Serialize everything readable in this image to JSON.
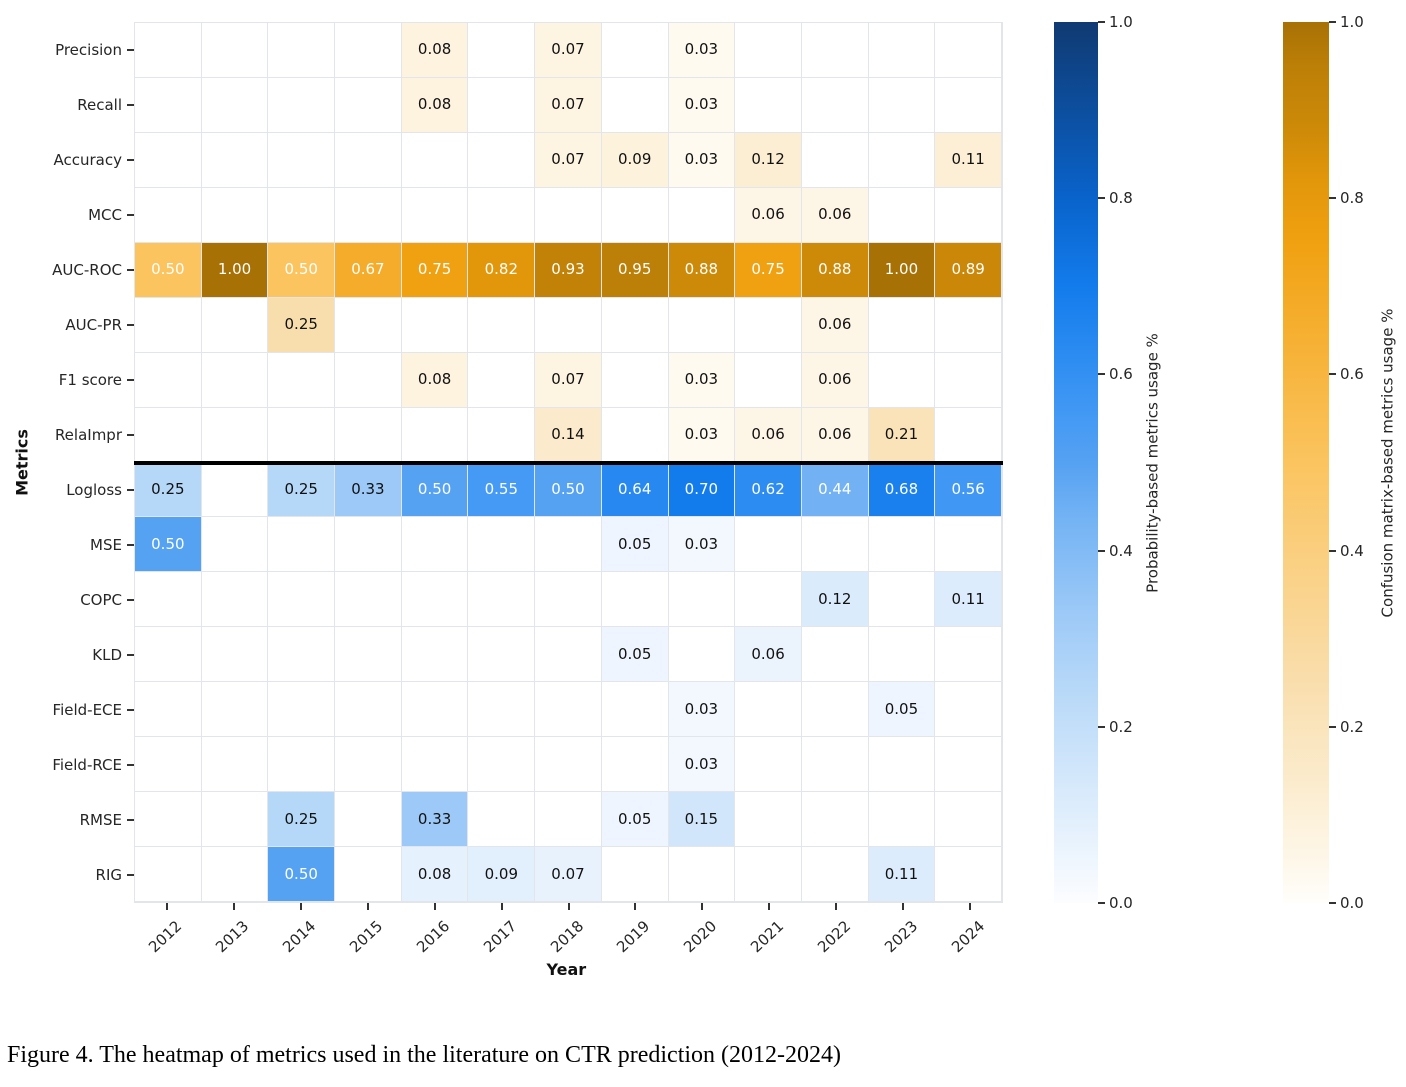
{
  "caption": "Figure 4. The heatmap of metrics used in the literature on CTR prediction (2012-2024)",
  "chart_data": {
    "type": "heatmap",
    "xlabel": "Year",
    "ylabel": "Metrics",
    "x": [
      "2012",
      "2013",
      "2014",
      "2015",
      "2016",
      "2017",
      "2018",
      "2019",
      "2020",
      "2021",
      "2022",
      "2023",
      "2024"
    ],
    "value_range": [
      0.0,
      1.0
    ],
    "rows": [
      {
        "label": "Precision",
        "scale": "confusion",
        "values": [
          null,
          null,
          null,
          null,
          0.08,
          null,
          0.07,
          null,
          0.03,
          null,
          null,
          null,
          null
        ]
      },
      {
        "label": "Recall",
        "scale": "confusion",
        "values": [
          null,
          null,
          null,
          null,
          0.08,
          null,
          0.07,
          null,
          0.03,
          null,
          null,
          null,
          null
        ]
      },
      {
        "label": "Accuracy",
        "scale": "confusion",
        "values": [
          null,
          null,
          null,
          null,
          null,
          null,
          0.07,
          0.09,
          0.03,
          0.12,
          null,
          null,
          0.11
        ]
      },
      {
        "label": "MCC",
        "scale": "confusion",
        "values": [
          null,
          null,
          null,
          null,
          null,
          null,
          null,
          null,
          null,
          0.06,
          0.06,
          null,
          null
        ]
      },
      {
        "label": "AUC-ROC",
        "scale": "confusion",
        "values": [
          0.5,
          1.0,
          0.5,
          0.67,
          0.75,
          0.82,
          0.93,
          0.95,
          0.88,
          0.75,
          0.88,
          1.0,
          0.89
        ]
      },
      {
        "label": "AUC-PR",
        "scale": "confusion",
        "values": [
          null,
          null,
          0.25,
          null,
          null,
          null,
          null,
          null,
          null,
          null,
          0.06,
          null,
          null
        ]
      },
      {
        "label": "F1 score",
        "scale": "confusion",
        "values": [
          null,
          null,
          null,
          null,
          0.08,
          null,
          0.07,
          null,
          0.03,
          null,
          0.06,
          null,
          null
        ]
      },
      {
        "label": "RelaImpr",
        "scale": "confusion",
        "values": [
          null,
          null,
          null,
          null,
          null,
          null,
          0.14,
          null,
          0.03,
          0.06,
          0.06,
          0.21,
          null
        ]
      },
      {
        "label": "Logloss",
        "scale": "probability",
        "values": [
          0.25,
          null,
          0.25,
          0.33,
          0.5,
          0.55,
          0.5,
          0.64,
          0.7,
          0.62,
          0.44,
          0.68,
          0.56
        ]
      },
      {
        "label": "MSE",
        "scale": "probability",
        "values": [
          0.5,
          null,
          null,
          null,
          null,
          null,
          null,
          0.05,
          0.03,
          null,
          null,
          null,
          null
        ]
      },
      {
        "label": "COPC",
        "scale": "probability",
        "values": [
          null,
          null,
          null,
          null,
          null,
          null,
          null,
          null,
          null,
          null,
          0.12,
          null,
          0.11
        ]
      },
      {
        "label": "KLD",
        "scale": "probability",
        "values": [
          null,
          null,
          null,
          null,
          null,
          null,
          null,
          0.05,
          null,
          0.06,
          null,
          null,
          null
        ]
      },
      {
        "label": "Field-ECE",
        "scale": "probability",
        "values": [
          null,
          null,
          null,
          null,
          null,
          null,
          null,
          null,
          0.03,
          null,
          null,
          0.05,
          null
        ]
      },
      {
        "label": "Field-RCE",
        "scale": "probability",
        "values": [
          null,
          null,
          null,
          null,
          null,
          null,
          null,
          null,
          0.03,
          null,
          null,
          null,
          null
        ]
      },
      {
        "label": "RMSE",
        "scale": "probability",
        "values": [
          null,
          null,
          0.25,
          null,
          0.33,
          null,
          null,
          0.05,
          0.15,
          null,
          null,
          null,
          null
        ]
      },
      {
        "label": "RIG",
        "scale": "probability",
        "values": [
          null,
          null,
          0.5,
          null,
          0.08,
          0.09,
          0.07,
          null,
          null,
          null,
          null,
          0.11,
          null
        ]
      }
    ],
    "separator_after_row": 7,
    "grid": true,
    "legend_position": "right-colorbars",
    "scales": {
      "probability": {
        "stops": [
          {
            "t": 0.0,
            "color": "#FCFDFF"
          },
          {
            "t": 0.25,
            "color": "#B5D7F8"
          },
          {
            "t": 0.33,
            "color": "#9CC9F7"
          },
          {
            "t": 0.44,
            "color": "#72B2F4"
          },
          {
            "t": 0.5,
            "color": "#55A1F2"
          },
          {
            "t": 0.55,
            "color": "#449AF4"
          },
          {
            "t": 0.64,
            "color": "#2688F0"
          },
          {
            "t": 0.7,
            "color": "#137CEC"
          },
          {
            "t": 0.8,
            "color": "#0963CB"
          },
          {
            "t": 1.0,
            "color": "#103A72"
          }
        ]
      },
      "confusion": {
        "stops": [
          {
            "t": 0.0,
            "color": "#FFFEFA"
          },
          {
            "t": 0.03,
            "color": "#FEFAF0"
          },
          {
            "t": 0.06,
            "color": "#FDF5E5"
          },
          {
            "t": 0.08,
            "color": "#FDF3DF"
          },
          {
            "t": 0.12,
            "color": "#FCEED3"
          },
          {
            "t": 0.14,
            "color": "#FBEBCC"
          },
          {
            "t": 0.21,
            "color": "#FAE3B9"
          },
          {
            "t": 0.25,
            "color": "#F9DEAD"
          },
          {
            "t": 0.5,
            "color": "#FBC45F"
          },
          {
            "t": 0.67,
            "color": "#F5AC2A"
          },
          {
            "t": 0.75,
            "color": "#F0A111"
          },
          {
            "t": 0.82,
            "color": "#E2960A"
          },
          {
            "t": 0.88,
            "color": "#CD8A08"
          },
          {
            "t": 0.95,
            "color": "#BC7F07"
          },
          {
            "t": 1.0,
            "color": "#A87105"
          }
        ]
      },
      "cell_text_dark": "#111111",
      "cell_text_light": "#ffffff"
    },
    "colorbars": [
      {
        "label": "Probability-based metrics usage %",
        "scale": "probability",
        "ticks": [
          "1.0",
          "0.8",
          "0.6",
          "0.4",
          "0.2",
          "0.0"
        ]
      },
      {
        "label": "Confusion matrix-based metrics usage %",
        "scale": "confusion",
        "ticks": [
          "1.0",
          "0.8",
          "0.6",
          "0.4",
          "0.2",
          "0.0"
        ]
      }
    ]
  }
}
